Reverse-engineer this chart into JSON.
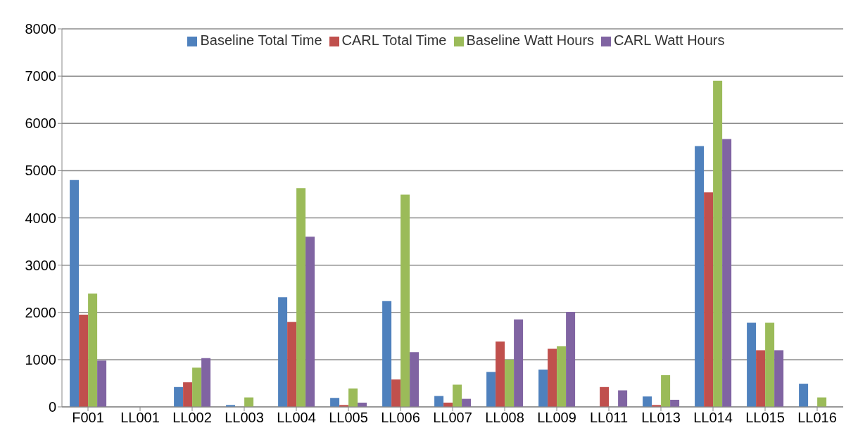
{
  "chart_data": {
    "type": "bar",
    "categories": [
      "F001",
      "LL001",
      "LL002",
      "LL003",
      "LL004",
      "LL005",
      "LL006",
      "LL007",
      "LL008",
      "LL009",
      "LL011",
      "LL013",
      "LL014",
      "LL015",
      "LL016"
    ],
    "series": [
      {
        "name": "Baseline Total Time",
        "color": "#4f81bd",
        "values": [
          4800,
          0,
          420,
          40,
          2320,
          190,
          2240,
          230,
          740,
          790,
          0,
          220,
          5520,
          1780,
          490
        ]
      },
      {
        "name": "CARL Total Time",
        "color": "#c0504d",
        "values": [
          1950,
          0,
          520,
          0,
          1800,
          40,
          580,
          90,
          1380,
          1230,
          420,
          40,
          4540,
          1200,
          0
        ]
      },
      {
        "name": "Baseline Watt Hours",
        "color": "#9bbb59",
        "values": [
          2400,
          0,
          830,
          200,
          4630,
          390,
          4490,
          470,
          1000,
          1280,
          0,
          670,
          6900,
          1780,
          200
        ]
      },
      {
        "name": "CARL Watt Hours",
        "color": "#8064a2",
        "values": [
          980,
          0,
          1030,
          null,
          3600,
          90,
          1160,
          170,
          1850,
          2010,
          350,
          150,
          5670,
          1200,
          0
        ]
      }
    ],
    "ylim": [
      0,
      8000
    ],
    "yticks": [
      0,
      1000,
      2000,
      3000,
      4000,
      5000,
      6000,
      7000,
      8000
    ],
    "grid": "y",
    "legend": "top"
  }
}
